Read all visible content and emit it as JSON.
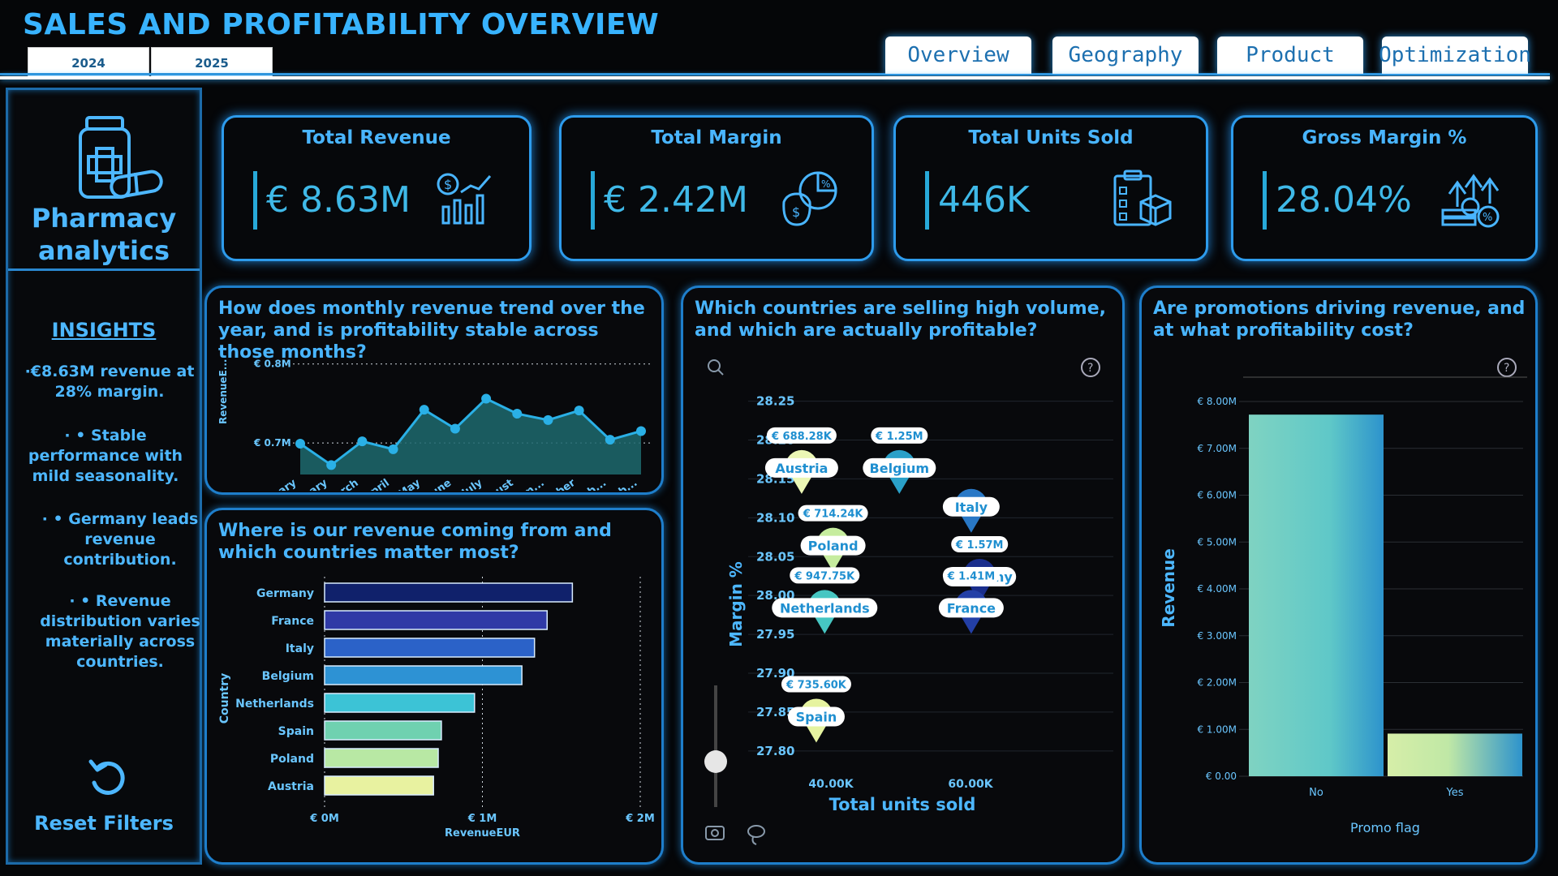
{
  "header": {
    "title": "SALES AND PROFITABILITY OVERVIEW",
    "years": [
      "2024",
      "2025"
    ],
    "tabs": [
      "Overview",
      "Geography",
      "Product",
      "Optimization"
    ]
  },
  "sidebar": {
    "logo_line1": "Pharmacy",
    "logo_line2": "analytics",
    "insights_title": "INSIGHTS",
    "insights": [
      "·€8.63M revenue at 28% margin.",
      "· • Stable performance with mild seasonality.",
      "· • Germany leads revenue contribution.",
      "· • Revenue distribution varies materially across countries."
    ],
    "reset_label": "Reset Filters"
  },
  "kpis": [
    {
      "title": "Total Revenue",
      "value": "€ 8.63M",
      "icon": "revenue-chart-icon"
    },
    {
      "title": "Total Margin",
      "value": "€ 2.42M",
      "icon": "money-bag-pie-icon"
    },
    {
      "title": "Total Units Sold",
      "value": "446K",
      "icon": "clipboard-boxes-icon"
    },
    {
      "title": "Gross Margin %",
      "value": "28.04%",
      "icon": "growth-coins-icon"
    }
  ],
  "panels": {
    "trend_title": "How does monthly revenue trend over the year, and is profitability stable across those months?",
    "countries_title": "Where is our revenue coming from and which countries matter most?",
    "scatter_title": "Which countries are selling high volume, and which are actually profitable?",
    "promo_title": "Are promotions driving revenue, and at what profitability cost?"
  },
  "chart_data": [
    {
      "type": "area",
      "title": "How does monthly revenue trend over the year, and is profitability stable across those months?",
      "ylabel": "RevenueE...",
      "y_ticks": [
        "€ 0.7M",
        "€ 0.8M"
      ],
      "ylim": [
        0.66,
        0.81
      ],
      "categories": [
        "January",
        "February",
        "March",
        "April",
        "May",
        "June",
        "July",
        "August",
        "Septem...",
        "October",
        "Novemb...",
        "Decemb..."
      ],
      "values": [
        0.699,
        0.672,
        0.702,
        0.692,
        0.742,
        0.718,
        0.756,
        0.737,
        0.729,
        0.741,
        0.704,
        0.715
      ]
    },
    {
      "type": "bar",
      "orientation": "horizontal",
      "title": "Where is our revenue coming from and which countries matter most?",
      "xlabel": "RevenueEUR",
      "ylabel": "Country",
      "x_ticks": [
        "€ 0M",
        "€ 1M",
        "€ 2M"
      ],
      "xlim": [
        0,
        2
      ],
      "categories": [
        "Germany",
        "France",
        "Italy",
        "Belgium",
        "Netherlands",
        "Spain",
        "Poland",
        "Austria"
      ],
      "values": [
        1.57,
        1.41,
        1.33,
        1.25,
        0.95,
        0.74,
        0.72,
        0.69
      ],
      "colors": [
        "#10216b",
        "#2f3aa6",
        "#2b62c8",
        "#2d92d4",
        "#3cc3d6",
        "#6fd1b0",
        "#b8e8a4",
        "#e8f2a0"
      ]
    },
    {
      "type": "scatter",
      "title": "Which countries are selling high volume, and which are actually profitable?",
      "xlabel": "Total units sold",
      "ylabel": "Margin %",
      "x_ticks": [
        "40.00K",
        "60.00K"
      ],
      "y_ticks": [
        "27.80",
        "27.85",
        "27.90",
        "27.95",
        "28.00",
        "28.05",
        "28.10",
        "28.15",
        "28.20",
        "28.25"
      ],
      "xlim": [
        30000,
        80000
      ],
      "ylim": [
        27.78,
        28.26
      ],
      "points": [
        {
          "country": "Austria",
          "units": 36500,
          "margin": 28.16,
          "revenue": "€ 688.28K",
          "color": "#ecf7b5"
        },
        {
          "country": "Belgium",
          "units": 50500,
          "margin": 28.16,
          "revenue": "€ 1.25M",
          "color": "#2aa0c8"
        },
        {
          "country": "Poland",
          "units": 41000,
          "margin": 28.06,
          "revenue": "€ 714.24K",
          "color": "#c6ec9e"
        },
        {
          "country": "Netherlands",
          "units": 39800,
          "margin": 27.98,
          "revenue": "€ 947.75K",
          "color": "#46c6c2"
        },
        {
          "country": "Italy",
          "units": 60800,
          "margin": 28.11,
          "revenue": "",
          "color": "#2978c6"
        },
        {
          "country": "Germany",
          "units": 62000,
          "margin": 28.02,
          "revenue": "€ 1.57M",
          "color": "#1a2e8c"
        },
        {
          "country": "France",
          "units": 60800,
          "margin": 27.98,
          "revenue": "€ 1.41M",
          "color": "#233fa6"
        },
        {
          "country": "Spain",
          "units": 38600,
          "margin": 27.84,
          "revenue": "€ 735.60K",
          "color": "#e6f3a0"
        }
      ],
      "overlap_label": "28.20"
    },
    {
      "type": "bar",
      "title": "Are promotions driving revenue, and at what profitability cost?",
      "xlabel": "Promo flag",
      "ylabel": "Revenue",
      "y_ticks": [
        "€ 0.00",
        "€ 1.00M",
        "€ 2.00M",
        "€ 3.00M",
        "€ 4.00M",
        "€ 5.00M",
        "€ 6.00M",
        "€ 7.00M",
        "€ 8.00M"
      ],
      "ylim": [
        0,
        8.0
      ],
      "categories": [
        "No",
        "Yes"
      ],
      "values": [
        7.72,
        0.91
      ]
    }
  ],
  "colors": {
    "accent": "#38b3ff",
    "panel_border": "#1e7ecb",
    "background": "#050608"
  }
}
